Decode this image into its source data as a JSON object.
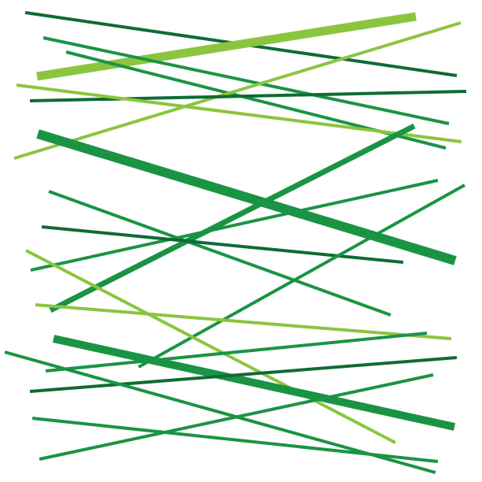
{
  "palette": {
    "dark_green": "#0e6b35",
    "green": "#1a9444",
    "light_green": "#8bc53f",
    "background": "#ffffff"
  }
}
